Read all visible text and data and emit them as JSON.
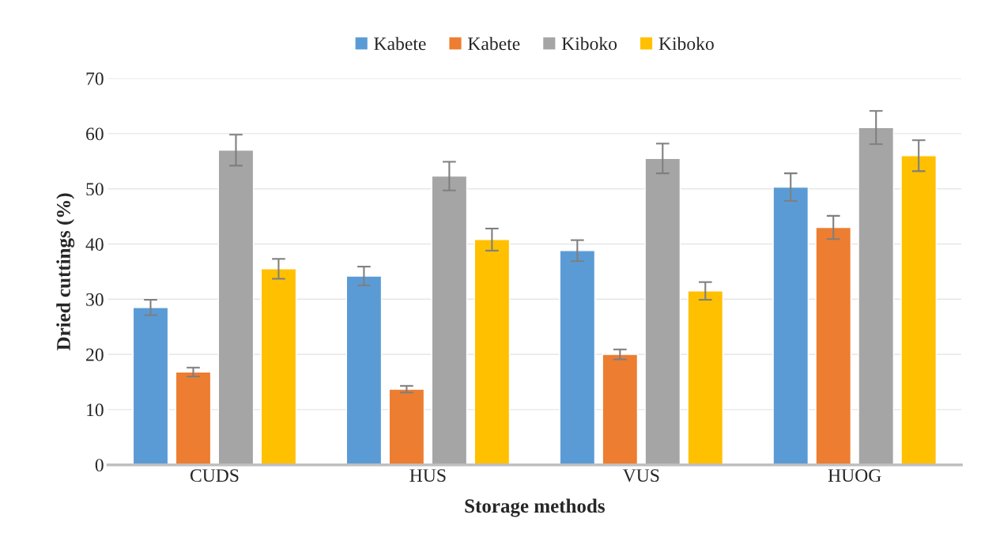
{
  "chart_data": {
    "type": "bar",
    "xlabel": "Storage methods",
    "ylabel": "Dried cuttings (%)",
    "categories": [
      "CUDS",
      "HUS",
      "VUS",
      "HUOG"
    ],
    "series": [
      {
        "name": "Kabete",
        "color": "#5b9bd5",
        "values": [
          28.5,
          34.2,
          38.8,
          50.3
        ],
        "errors": [
          1.4,
          1.7,
          1.9,
          2.5
        ]
      },
      {
        "name": "Kabete",
        "color": "#ed7d31",
        "values": [
          16.8,
          13.7,
          20.0,
          43.0
        ],
        "errors": [
          0.8,
          0.6,
          0.9,
          2.1
        ]
      },
      {
        "name": "Kiboko",
        "color": "#a5a5a5",
        "values": [
          57.0,
          52.3,
          55.5,
          61.1
        ],
        "errors": [
          2.8,
          2.6,
          2.7,
          3.0
        ]
      },
      {
        "name": "Kiboko",
        "color": "#ffc000",
        "values": [
          35.5,
          40.8,
          31.5,
          56.0
        ],
        "errors": [
          1.8,
          2.0,
          1.6,
          2.8
        ]
      }
    ],
    "ylim": [
      0,
      70
    ],
    "yticks": [
      0,
      10,
      20,
      30,
      40,
      50,
      60,
      70
    ],
    "grid": "y",
    "legend": "top"
  }
}
